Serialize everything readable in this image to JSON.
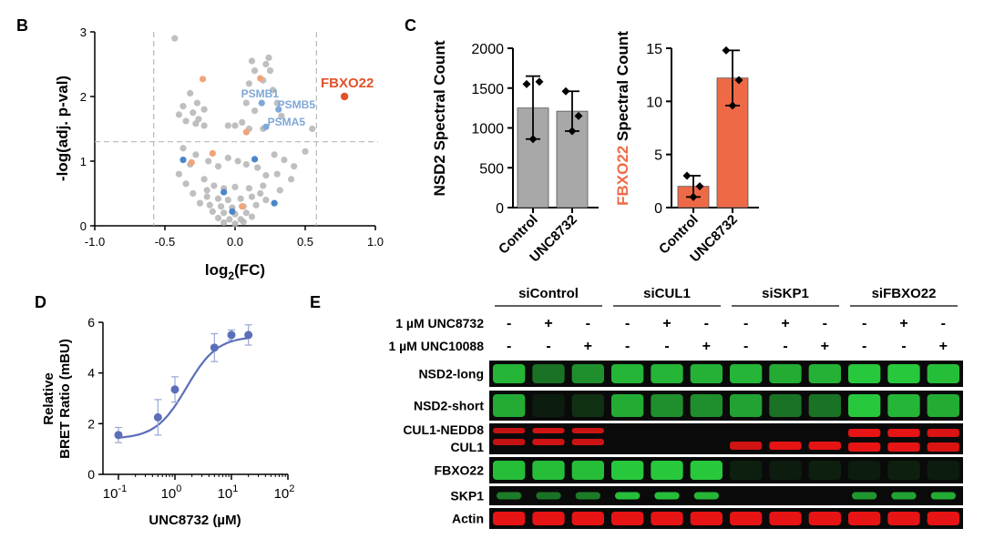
{
  "panels": {
    "B": {
      "letter": "B",
      "chart_data": {
        "type": "scatter",
        "xlabel_main": "log",
        "xlabel_sub": "2",
        "xlabel_tail": "(FC)",
        "ylabel": "-log(adj. p-val)",
        "xlim": [
          -1.0,
          1.0
        ],
        "ylim": [
          0,
          3
        ],
        "xticks": [
          "-1.0",
          "-0.5",
          "0.0",
          "0.5",
          "1.0"
        ],
        "yticks": [
          "0",
          "1",
          "2",
          "3"
        ],
        "thresholds": {
          "fc": [
            -0.58,
            0.58
          ],
          "p": 1.3
        },
        "colors": {
          "gray": "#b4b4b4",
          "blue": "#4a86c8",
          "lightblue": "#7fa8d8",
          "orange": "#f2a37c",
          "red": "#e0522a"
        },
        "gray_points": [
          [
            -0.43,
            2.9
          ],
          [
            -0.32,
            2.05
          ],
          [
            -0.27,
            1.9
          ],
          [
            -0.37,
            1.85
          ],
          [
            -0.22,
            1.8
          ],
          [
            -0.3,
            1.75
          ],
          [
            -0.4,
            1.72
          ],
          [
            -0.26,
            1.65
          ],
          [
            -0.35,
            1.62
          ],
          [
            -0.28,
            1.58
          ],
          [
            -0.05,
            1.55
          ],
          [
            -0.22,
            1.55
          ],
          [
            0.0,
            1.55
          ],
          [
            0.05,
            1.6
          ],
          [
            0.12,
            2.55
          ],
          [
            0.22,
            2.5
          ],
          [
            0.25,
            2.4
          ],
          [
            0.14,
            2.4
          ],
          [
            0.2,
            2.25
          ],
          [
            0.1,
            2.2
          ],
          [
            0.27,
            2.1
          ],
          [
            0.3,
            1.9
          ],
          [
            0.08,
            1.9
          ],
          [
            0.14,
            1.78
          ],
          [
            0.33,
            1.7
          ],
          [
            0.2,
            1.5
          ],
          [
            0.1,
            1.5
          ],
          [
            0.55,
            1.5
          ],
          [
            0.24,
            2.6
          ],
          [
            -0.37,
            1.2
          ],
          [
            -0.28,
            1.1
          ],
          [
            -0.19,
            1.0
          ],
          [
            -0.32,
            0.95
          ],
          [
            -0.4,
            0.8
          ],
          [
            -0.12,
            0.92
          ],
          [
            -0.05,
            1.05
          ],
          [
            0.02,
            1.0
          ],
          [
            0.08,
            0.95
          ],
          [
            0.16,
            0.9
          ],
          [
            0.28,
            1.1
          ],
          [
            0.35,
            1.02
          ],
          [
            0.42,
            0.92
          ],
          [
            0.3,
            0.8
          ],
          [
            0.22,
            0.78
          ],
          [
            -0.22,
            0.72
          ],
          [
            -0.15,
            0.62
          ],
          [
            -0.08,
            0.58
          ],
          [
            0.0,
            0.6
          ],
          [
            0.1,
            0.58
          ],
          [
            0.2,
            0.62
          ],
          [
            0.32,
            0.55
          ],
          [
            -0.3,
            0.5
          ],
          [
            -0.2,
            0.45
          ],
          [
            -0.12,
            0.42
          ],
          [
            -0.05,
            0.4
          ],
          [
            0.04,
            0.42
          ],
          [
            0.12,
            0.45
          ],
          [
            0.22,
            0.4
          ],
          [
            -0.25,
            0.35
          ],
          [
            -0.18,
            0.32
          ],
          [
            -0.1,
            0.3
          ],
          [
            -0.02,
            0.28
          ],
          [
            0.06,
            0.3
          ],
          [
            0.15,
            0.32
          ],
          [
            -0.16,
            0.22
          ],
          [
            -0.08,
            0.2
          ],
          [
            0.0,
            0.18
          ],
          [
            0.08,
            0.2
          ],
          [
            -0.12,
            0.12
          ],
          [
            -0.04,
            0.1
          ],
          [
            0.04,
            0.1
          ],
          [
            0.12,
            0.14
          ],
          [
            -0.08,
            0.05
          ],
          [
            0.0,
            0.03
          ],
          [
            0.06,
            0.06
          ],
          [
            -0.2,
            0.55
          ],
          [
            0.18,
            0.5
          ],
          [
            0.4,
            0.72
          ],
          [
            -0.35,
            0.65
          ],
          [
            0.5,
            1.15
          ]
        ],
        "blue_points": [
          [
            0.19,
            1.9
          ],
          [
            0.31,
            1.8
          ],
          [
            0.22,
            1.53
          ],
          [
            -0.37,
            1.02
          ],
          [
            0.14,
            1.03
          ],
          [
            -0.08,
            0.52
          ],
          [
            0.28,
            0.35
          ],
          [
            -0.02,
            0.22
          ]
        ],
        "orange_points": [
          [
            -0.23,
            2.27
          ],
          [
            0.18,
            2.28
          ],
          [
            0.08,
            1.45
          ],
          [
            -0.16,
            1.12
          ],
          [
            -0.31,
            0.98
          ],
          [
            0.05,
            0.3
          ]
        ],
        "highlight": {
          "x": 0.78,
          "y": 2.0,
          "label": "FBXO22"
        },
        "labels": [
          "PSMB1",
          "PSMB5",
          "PSMA5"
        ]
      }
    },
    "C": {
      "letter": "C",
      "charts": [
        {
          "type": "bar",
          "ylabel": "NSD2 Spectral Count",
          "categories": [
            "Control",
            "UNC8732"
          ],
          "values": [
            1250,
            1210
          ],
          "errors": [
            [
              860,
              1650
            ],
            [
              960,
              1460
            ]
          ],
          "points": [
            [
              1550,
              860,
              1580
            ],
            [
              1460,
              960,
              1150
            ]
          ],
          "ylim": [
            0,
            2000
          ],
          "yticks": [
            "0",
            "500",
            "1000",
            "1500",
            "2000"
          ],
          "color": "#a8a8a8"
        },
        {
          "type": "bar",
          "ylabel_highlight": "FBXO22",
          "ylabel_rest": " Spectral Count",
          "categories": [
            "Control",
            "UNC8732"
          ],
          "values": [
            2.0,
            12.2
          ],
          "errors": [
            [
              1.0,
              3.0
            ],
            [
              9.6,
              14.8
            ]
          ],
          "points": [
            [
              3.0,
              1.0,
              2.0
            ],
            [
              14.8,
              9.6,
              12.0
            ]
          ],
          "ylim": [
            0,
            15
          ],
          "yticks": [
            "0",
            "5",
            "10",
            "15"
          ],
          "color": "#ee6a47"
        }
      ]
    },
    "D": {
      "letter": "D",
      "chart_data": {
        "type": "line",
        "ylabel_line1": "Relative",
        "ylabel_line2": "BRET Ratio (mBU)",
        "xlabel": "UNC8732 (µM)",
        "x": [
          0.1,
          0.5,
          1.0,
          5.0,
          10.0,
          20.0
        ],
        "y": [
          1.55,
          2.25,
          3.35,
          5.0,
          5.5,
          5.5
        ],
        "err": [
          0.3,
          0.7,
          0.5,
          0.55,
          0.2,
          0.4
        ],
        "fit": {
          "bottom": 1.4,
          "top": 5.45,
          "ec50": 1.6,
          "hill": 1.6
        },
        "ylim": [
          0,
          6
        ],
        "yticks": [
          "0",
          "2",
          "4",
          "6"
        ],
        "xticks": [
          {
            "base": "10",
            "exp": "-1"
          },
          {
            "base": "10",
            "exp": "0"
          },
          {
            "base": "10",
            "exp": "1"
          },
          {
            "base": "10",
            "exp": "2"
          }
        ],
        "color": "#5b6fb8"
      }
    },
    "E": {
      "letter": "E",
      "groups": [
        "siControl",
        "siCUL1",
        "siSKP1",
        "siFBXO22"
      ],
      "treatments": [
        {
          "label": "1 µM UNC8732",
          "marks": [
            "-",
            "+",
            "-",
            "-",
            "+",
            "-",
            "-",
            "+",
            "-",
            "-",
            "+",
            "-"
          ]
        },
        {
          "label": "1 µM UNC10088",
          "marks": [
            "-",
            "-",
            "+",
            "-",
            "-",
            "+",
            "-",
            "-",
            "+",
            "-",
            "-",
            "+"
          ]
        }
      ],
      "rows": [
        {
          "label": "NSD2-long",
          "color": "green",
          "intensity": [
            0.9,
            0.55,
            0.7,
            0.9,
            0.9,
            0.88,
            0.9,
            0.85,
            0.88,
            1.0,
            1.0,
            0.95
          ]
        },
        {
          "label": "NSD2-short",
          "color": "green",
          "intensity": [
            0.85,
            0.1,
            0.2,
            0.85,
            0.7,
            0.7,
            0.8,
            0.55,
            0.55,
            1.0,
            0.9,
            0.85
          ]
        },
        {
          "label_top": "CUL1-NEDD8",
          "label_bottom": "CUL1",
          "color": "red",
          "intensity": [
            0.85,
            0.9,
            0.88,
            0.0,
            0.0,
            0.0,
            0.9,
            1.0,
            1.0,
            1.0,
            1.0,
            0.95
          ]
        },
        {
          "label": "FBXO22",
          "color": "green",
          "intensity": [
            0.95,
            0.95,
            0.95,
            1.0,
            1.0,
            1.0,
            0.12,
            0.1,
            0.12,
            0.1,
            0.12,
            0.1
          ]
        },
        {
          "label": "SKP1",
          "color": "green",
          "intensity": [
            0.6,
            0.55,
            0.6,
            0.95,
            0.95,
            0.9,
            0.0,
            0.0,
            0.0,
            0.75,
            0.8,
            0.85
          ]
        },
        {
          "label": "Actin",
          "color": "red",
          "intensity": [
            1,
            1,
            1,
            1,
            1,
            1,
            1,
            1,
            1,
            1,
            1,
            1
          ]
        }
      ]
    }
  }
}
